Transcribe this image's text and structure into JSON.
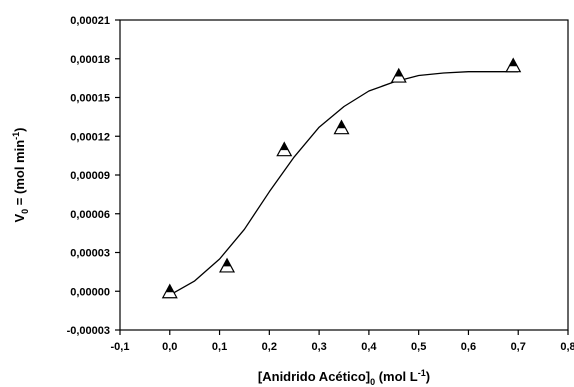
{
  "chart_data": {
    "type": "scatter",
    "xlabel_main": "[Anidrido Acético]",
    "xlabel_sub": "0",
    "xlabel_units": " (mol L",
    "xlabel_exp": "-1",
    "xlabel_close": ")",
    "ylabel_main": "V",
    "ylabel_sub": "0",
    "ylabel_units": " = (mol min",
    "ylabel_exp": "-1",
    "ylabel_close": ")",
    "xlim": [
      -0.1,
      0.8
    ],
    "ylim": [
      -3e-05,
      0.00021
    ],
    "x_ticks": [
      -0.1,
      0.0,
      0.1,
      0.2,
      0.3,
      0.4,
      0.5,
      0.6,
      0.7,
      0.8
    ],
    "x_tick_labels": [
      "-0,1",
      "0,0",
      "0,1",
      "0,2",
      "0,3",
      "0,4",
      "0,5",
      "0,6",
      "0,7",
      "0,8"
    ],
    "y_ticks": [
      -3e-05,
      0.0,
      3e-05,
      6e-05,
      9e-05,
      0.00012,
      0.00015,
      0.00018,
      0.00021
    ],
    "y_tick_labels": [
      "-0,00003",
      "0,00000",
      "0,00003",
      "0,00006",
      "0,00009",
      "0,00012",
      "0,00015",
      "0,00018",
      "0,00021"
    ],
    "grid": false,
    "series": [
      {
        "marker": "triangle",
        "points": [
          {
            "x": 0.0,
            "y": 0.0
          },
          {
            "x": 0.115,
            "y": 2e-05
          },
          {
            "x": 0.23,
            "y": 0.00011
          },
          {
            "x": 0.345,
            "y": 0.000127
          },
          {
            "x": 0.46,
            "y": 0.000167
          },
          {
            "x": 0.69,
            "y": 0.000175
          }
        ]
      },
      {
        "marker": "line",
        "points": [
          {
            "x": 0.0,
            "y": -3e-06
          },
          {
            "x": 0.05,
            "y": 8e-06
          },
          {
            "x": 0.1,
            "y": 2.5e-05
          },
          {
            "x": 0.15,
            "y": 4.8e-05
          },
          {
            "x": 0.2,
            "y": 7.7e-05
          },
          {
            "x": 0.25,
            "y": 0.000104
          },
          {
            "x": 0.3,
            "y": 0.000127
          },
          {
            "x": 0.35,
            "y": 0.000143
          },
          {
            "x": 0.4,
            "y": 0.000155
          },
          {
            "x": 0.45,
            "y": 0.000162
          },
          {
            "x": 0.5,
            "y": 0.000167
          },
          {
            "x": 0.55,
            "y": 0.000169
          },
          {
            "x": 0.6,
            "y": 0.00017
          },
          {
            "x": 0.7,
            "y": 0.00017
          }
        ]
      }
    ]
  }
}
